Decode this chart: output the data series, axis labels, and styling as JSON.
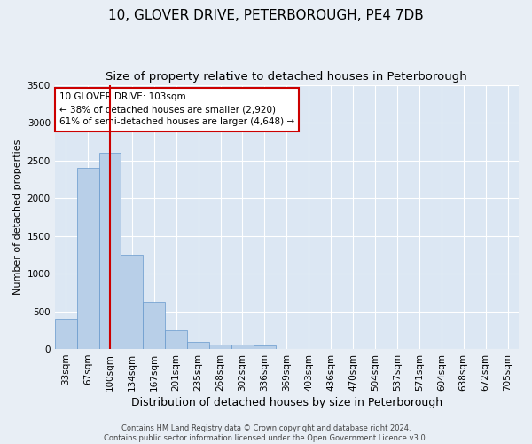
{
  "title": "10, GLOVER DRIVE, PETERBOROUGH, PE4 7DB",
  "subtitle": "Size of property relative to detached houses in Peterborough",
  "xlabel": "Distribution of detached houses by size in Peterborough",
  "ylabel": "Number of detached properties",
  "footnote1": "Contains HM Land Registry data © Crown copyright and database right 2024.",
  "footnote2": "Contains public sector information licensed under the Open Government Licence v3.0.",
  "bins": [
    "33sqm",
    "67sqm",
    "100sqm",
    "134sqm",
    "167sqm",
    "201sqm",
    "235sqm",
    "268sqm",
    "302sqm",
    "336sqm",
    "369sqm",
    "403sqm",
    "436sqm",
    "470sqm",
    "504sqm",
    "537sqm",
    "571sqm",
    "604sqm",
    "638sqm",
    "672sqm",
    "705sqm"
  ],
  "values": [
    400,
    2400,
    2600,
    1250,
    625,
    250,
    100,
    65,
    60,
    50,
    0,
    0,
    0,
    0,
    0,
    0,
    0,
    0,
    0,
    0,
    0
  ],
  "bar_color": "#b8cfe8",
  "bar_edge_color": "#6699cc",
  "vline_x_index": 2,
  "vline_color": "#cc0000",
  "annotation_text": "10 GLOVER DRIVE: 103sqm\n← 38% of detached houses are smaller (2,920)\n61% of semi-detached houses are larger (4,648) →",
  "annotation_box_color": "#ffffff",
  "annotation_box_edge": "#cc0000",
  "ylim": [
    0,
    3500
  ],
  "yticks": [
    0,
    500,
    1000,
    1500,
    2000,
    2500,
    3000,
    3500
  ],
  "bg_color": "#e8eef5",
  "plot_bg_color": "#dce7f3",
  "grid_color": "#ffffff",
  "title_fontsize": 11,
  "subtitle_fontsize": 9.5,
  "tick_fontsize": 7.5,
  "ylabel_fontsize": 8,
  "xlabel_fontsize": 9,
  "annot_fontsize": 7.5,
  "footnote_fontsize": 6
}
